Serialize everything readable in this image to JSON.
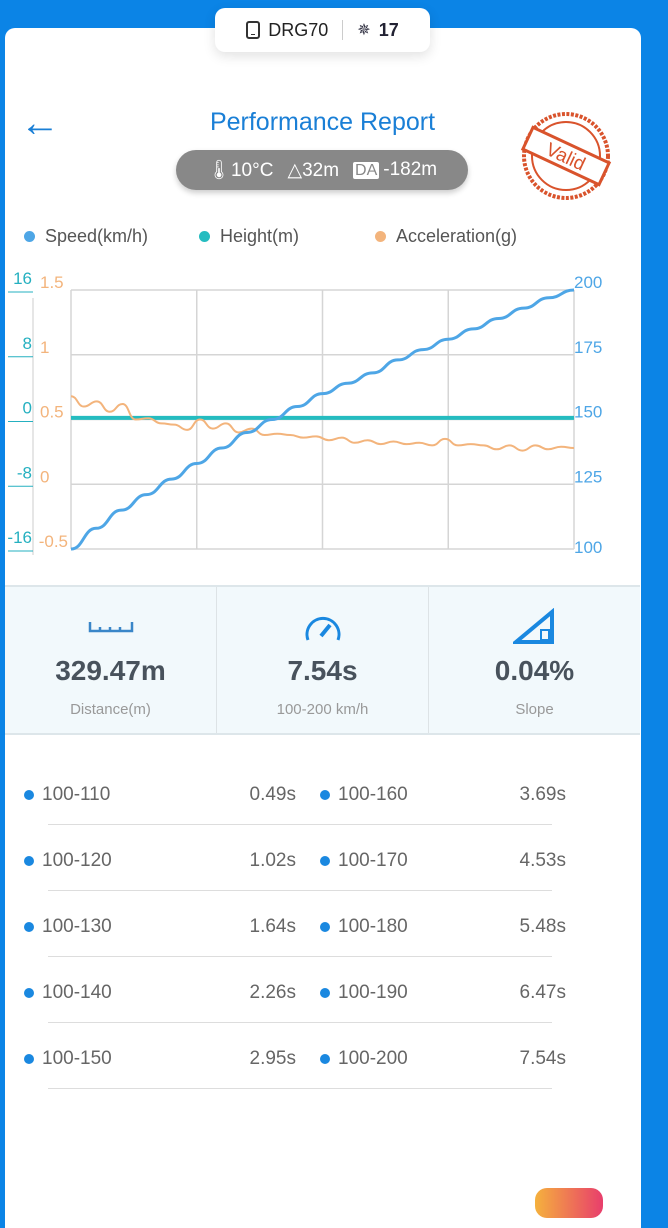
{
  "header": {
    "device": "DRG70",
    "satellites": "17"
  },
  "title": "Performance Report",
  "conditions": {
    "temperature": "10°C",
    "altitude": "32m",
    "da_label": "DA",
    "density_altitude": "-182m"
  },
  "stamp": "Valid",
  "colors": {
    "speed": "#4ea6e6",
    "height": "#25bcc0",
    "acceleration": "#f3b47c"
  },
  "chart_data": {
    "type": "line",
    "legend": [
      "Speed(km/h)",
      "Height(m)",
      "Acceleration(g)"
    ],
    "axes": {
      "height": {
        "ticks": [
          "16",
          "8",
          "0",
          "-8",
          "-16"
        ],
        "ylim": [
          -16,
          16
        ]
      },
      "acceleration": {
        "ticks": [
          "1.5",
          "1",
          "0.5",
          "0",
          "-0.5"
        ],
        "ylim": [
          -0.5,
          1.5
        ]
      },
      "speed": {
        "ticks": [
          "200",
          "175",
          "150",
          "125",
          "100"
        ],
        "ylim": [
          100,
          200
        ]
      }
    },
    "grid": true,
    "series": [
      {
        "name": "Speed(km/h)",
        "values": [
          100,
          108,
          115,
          121,
          127,
          133,
          139,
          145,
          150,
          155,
          160,
          164,
          168,
          173,
          177,
          181,
          185,
          189,
          193,
          197,
          200
        ]
      },
      {
        "name": "Height(m)",
        "values": [
          0.2,
          0.2,
          0.2,
          0.2,
          0.2,
          0.2,
          0.2,
          0.2,
          0.2,
          0.2,
          0.2
        ]
      },
      {
        "name": "Acceleration(g)",
        "values": [
          0.68,
          0.6,
          0.64,
          0.56,
          0.62,
          0.5,
          0.51,
          0.47,
          0.46,
          0.42,
          0.5,
          0.43,
          0.47,
          0.4,
          0.43,
          0.38,
          0.39,
          0.38,
          0.36,
          0.37,
          0.34,
          0.36,
          0.32,
          0.34,
          0.31,
          0.33,
          0.31,
          0.32,
          0.3,
          0.35,
          0.3,
          0.31,
          0.3,
          0.27,
          0.3,
          0.26,
          0.3,
          0.27,
          0.29,
          0.28
        ]
      }
    ]
  },
  "stats": [
    {
      "value": "329.47m",
      "label": "Distance(m)"
    },
    {
      "value": "7.54s",
      "label": "100-200 km/h"
    },
    {
      "value": "0.04%",
      "label": "Slope"
    }
  ],
  "splits": [
    {
      "range": "100-110",
      "time": "0.49s"
    },
    {
      "range": "100-160",
      "time": "3.69s"
    },
    {
      "range": "100-120",
      "time": "1.02s"
    },
    {
      "range": "100-170",
      "time": "4.53s"
    },
    {
      "range": "100-130",
      "time": "1.64s"
    },
    {
      "range": "100-180",
      "time": "5.48s"
    },
    {
      "range": "100-140",
      "time": "2.26s"
    },
    {
      "range": "100-190",
      "time": "6.47s"
    },
    {
      "range": "100-150",
      "time": "2.95s"
    },
    {
      "range": "100-200",
      "time": "7.54s"
    }
  ]
}
